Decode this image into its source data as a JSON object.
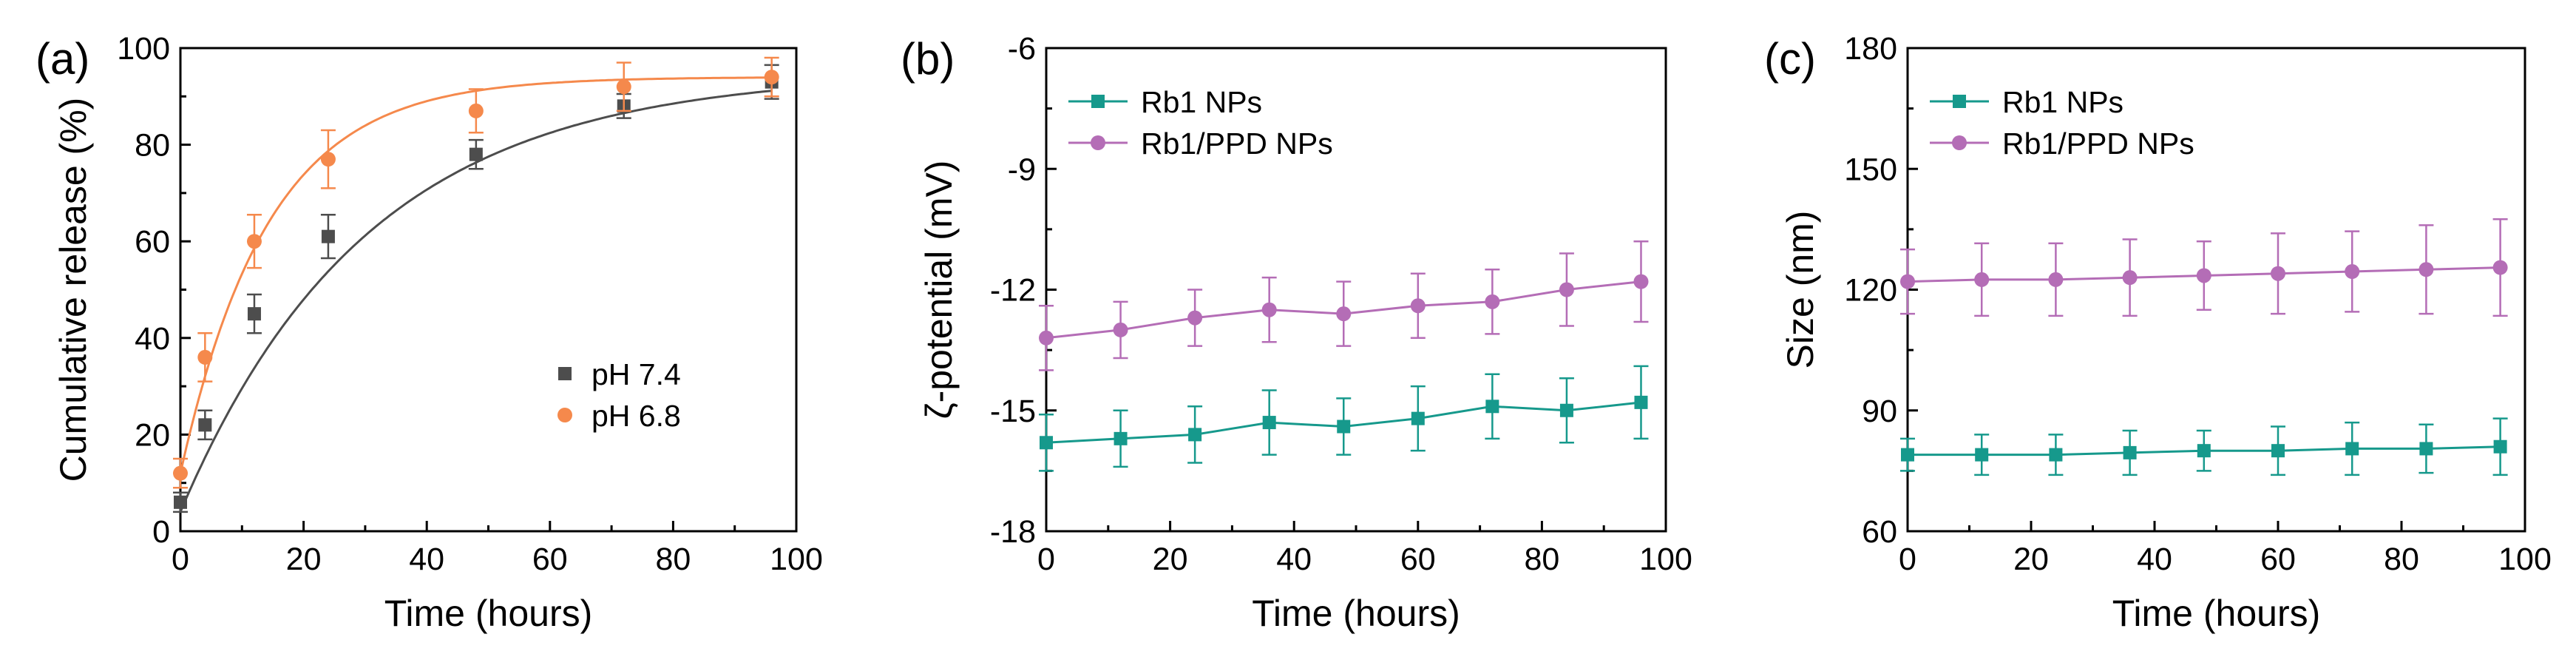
{
  "chart_data": [
    {
      "panel_label": "(a)",
      "type": "scatter",
      "xlabel": "Time (hours)",
      "ylabel": "Cumulative release (%)",
      "xlim": [
        0,
        100
      ],
      "ylim": [
        0,
        100
      ],
      "xticks": [
        "0",
        "20",
        "40",
        "60",
        "80",
        "100"
      ],
      "yticks": [
        "0",
        "20",
        "40",
        "60",
        "80",
        "100"
      ],
      "legend_position": "center-right",
      "series": [
        {
          "name": "pH 7.4",
          "marker": "square",
          "color": "#4d4d4d",
          "x": [
            0,
            4,
            12,
            24,
            48,
            72,
            96
          ],
          "y": [
            6,
            22,
            45,
            61,
            78,
            88,
            93
          ],
          "err": [
            2,
            3,
            4,
            4.5,
            3,
            2.5,
            3.5
          ],
          "fit": {
            "form": "A*(1-exp(-k*t))+c",
            "A": 91,
            "k": 0.033,
            "c": 4
          }
        },
        {
          "name": "pH 6.8",
          "marker": "circle",
          "color": "#f5894c",
          "x": [
            0,
            4,
            12,
            24,
            48,
            72,
            96
          ],
          "y": [
            12,
            36,
            60,
            77,
            87,
            92,
            94
          ],
          "err": [
            3,
            5,
            5.5,
            6,
            4.5,
            5,
            4
          ],
          "fit": {
            "form": "A*(1-exp(-k*t))+c",
            "A": 82,
            "k": 0.07,
            "c": 12
          }
        }
      ]
    },
    {
      "panel_label": "(b)",
      "type": "line",
      "xlabel": "Time (hours)",
      "ylabel": "ζ-potential (mV)",
      "xlim": [
        0,
        100
      ],
      "ylim": [
        -18,
        -6
      ],
      "xticks": [
        "0",
        "20",
        "40",
        "60",
        "80",
        "100"
      ],
      "yticks": [
        "-18",
        "-15",
        "-12",
        "-9",
        "-6"
      ],
      "legend_position": "top-left",
      "series": [
        {
          "name": "Rb1 NPs",
          "marker": "square",
          "color": "#16998c",
          "x": [
            0,
            12,
            24,
            36,
            48,
            60,
            72,
            84,
            96
          ],
          "y": [
            -15.8,
            -15.7,
            -15.6,
            -15.3,
            -15.4,
            -15.2,
            -14.9,
            -15.0,
            -14.8
          ],
          "err": [
            0.7,
            0.7,
            0.7,
            0.8,
            0.7,
            0.8,
            0.8,
            0.8,
            0.9
          ]
        },
        {
          "name": "Rb1/PPD NPs",
          "marker": "circle",
          "color": "#b46db6",
          "x": [
            0,
            12,
            24,
            36,
            48,
            60,
            72,
            84,
            96
          ],
          "y": [
            -13.2,
            -13.0,
            -12.7,
            -12.5,
            -12.6,
            -12.4,
            -12.3,
            -12.0,
            -11.8
          ],
          "err": [
            0.8,
            0.7,
            0.7,
            0.8,
            0.8,
            0.8,
            0.8,
            0.9,
            1.0
          ]
        }
      ]
    },
    {
      "panel_label": "(c)",
      "type": "line",
      "xlabel": "Time (hours)",
      "ylabel": "Size (nm)",
      "xlim": [
        0,
        100
      ],
      "ylim": [
        60,
        180
      ],
      "xticks": [
        "0",
        "20",
        "40",
        "60",
        "80",
        "100"
      ],
      "yticks": [
        "60",
        "90",
        "120",
        "150",
        "180"
      ],
      "legend_position": "top-left",
      "series": [
        {
          "name": "Rb1 NPs",
          "marker": "square",
          "color": "#16998c",
          "x": [
            0,
            12,
            24,
            36,
            48,
            60,
            72,
            84,
            96
          ],
          "y": [
            79,
            79,
            79,
            79.5,
            80,
            80,
            80.5,
            80.5,
            81
          ],
          "err": [
            4,
            5,
            5,
            5.5,
            5,
            6,
            6.5,
            6,
            7
          ]
        },
        {
          "name": "Rb1/PPD NPs",
          "marker": "circle",
          "color": "#b46db6",
          "x": [
            0,
            12,
            24,
            36,
            48,
            60,
            72,
            84,
            96
          ],
          "y": [
            122,
            122.5,
            122.5,
            123,
            123.5,
            124,
            124.5,
            125,
            125.5
          ],
          "err": [
            8,
            9,
            9,
            9.5,
            8.5,
            10,
            10,
            11,
            12
          ]
        }
      ]
    }
  ]
}
